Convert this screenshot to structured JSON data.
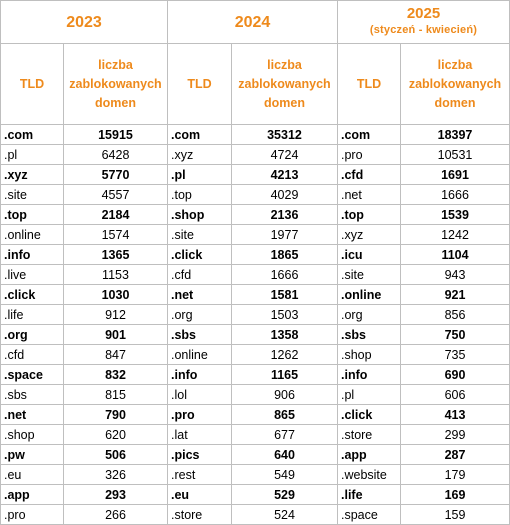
{
  "years": [
    {
      "year": "2023",
      "note": ""
    },
    {
      "year": "2024",
      "note": ""
    },
    {
      "year": "2025",
      "note": "(styczeń - kwiecień)"
    }
  ],
  "columns": {
    "tld": "TLD",
    "count": "liczba zablokowanych domen"
  },
  "rows": [
    [
      {
        "tld": ".com",
        "count": "15915"
      },
      {
        "tld": ".com",
        "count": "35312"
      },
      {
        "tld": ".com",
        "count": "18397"
      }
    ],
    [
      {
        "tld": ".pl",
        "count": "6428"
      },
      {
        "tld": ".xyz",
        "count": "4724"
      },
      {
        "tld": ".pro",
        "count": "10531"
      }
    ],
    [
      {
        "tld": ".xyz",
        "count": "5770"
      },
      {
        "tld": ".pl",
        "count": "4213"
      },
      {
        "tld": ".cfd",
        "count": "1691"
      }
    ],
    [
      {
        "tld": ".site",
        "count": "4557"
      },
      {
        "tld": ".top",
        "count": "4029"
      },
      {
        "tld": ".net",
        "count": "1666"
      }
    ],
    [
      {
        "tld": ".top",
        "count": "2184"
      },
      {
        "tld": ".shop",
        "count": "2136"
      },
      {
        "tld": ".top",
        "count": "1539"
      }
    ],
    [
      {
        "tld": ".online",
        "count": "1574"
      },
      {
        "tld": ".site",
        "count": "1977"
      },
      {
        "tld": ".xyz",
        "count": "1242"
      }
    ],
    [
      {
        "tld": ".info",
        "count": "1365"
      },
      {
        "tld": ".click",
        "count": "1865"
      },
      {
        "tld": ".icu",
        "count": "1104"
      }
    ],
    [
      {
        "tld": ".live",
        "count": "1153"
      },
      {
        "tld": ".cfd",
        "count": "1666"
      },
      {
        "tld": ".site",
        "count": "943"
      }
    ],
    [
      {
        "tld": ".click",
        "count": "1030"
      },
      {
        "tld": ".net",
        "count": "1581"
      },
      {
        "tld": ".online",
        "count": "921"
      }
    ],
    [
      {
        "tld": ".life",
        "count": "912"
      },
      {
        "tld": ".org",
        "count": "1503"
      },
      {
        "tld": ".org",
        "count": "856"
      }
    ],
    [
      {
        "tld": ".org",
        "count": "901"
      },
      {
        "tld": ".sbs",
        "count": "1358"
      },
      {
        "tld": ".sbs",
        "count": "750"
      }
    ],
    [
      {
        "tld": ".cfd",
        "count": "847"
      },
      {
        "tld": ".online",
        "count": "1262"
      },
      {
        "tld": ".shop",
        "count": "735"
      }
    ],
    [
      {
        "tld": ".space",
        "count": "832"
      },
      {
        "tld": ".info",
        "count": "1165"
      },
      {
        "tld": ".info",
        "count": "690"
      }
    ],
    [
      {
        "tld": ".sbs",
        "count": "815"
      },
      {
        "tld": ".lol",
        "count": "906"
      },
      {
        "tld": ".pl",
        "count": "606"
      }
    ],
    [
      {
        "tld": ".net",
        "count": "790"
      },
      {
        "tld": ".pro",
        "count": "865"
      },
      {
        "tld": ".click",
        "count": "413"
      }
    ],
    [
      {
        "tld": ".shop",
        "count": "620"
      },
      {
        "tld": ".lat",
        "count": "677"
      },
      {
        "tld": ".store",
        "count": "299"
      }
    ],
    [
      {
        "tld": ".pw",
        "count": "506"
      },
      {
        "tld": ".pics",
        "count": "640"
      },
      {
        "tld": ".app",
        "count": "287"
      }
    ],
    [
      {
        "tld": ".eu",
        "count": "326"
      },
      {
        "tld": ".rest",
        "count": "549"
      },
      {
        "tld": ".website",
        "count": "179"
      }
    ],
    [
      {
        "tld": ".app",
        "count": "293"
      },
      {
        "tld": ".eu",
        "count": "529"
      },
      {
        "tld": ".life",
        "count": "169"
      }
    ],
    [
      {
        "tld": ".pro",
        "count": "266"
      },
      {
        "tld": ".store",
        "count": "524"
      },
      {
        "tld": ".space",
        "count": "159"
      }
    ]
  ],
  "colors": {
    "header_orange": "#ee8a1c",
    "grid": "#bfbfbf",
    "text": "#000000"
  }
}
